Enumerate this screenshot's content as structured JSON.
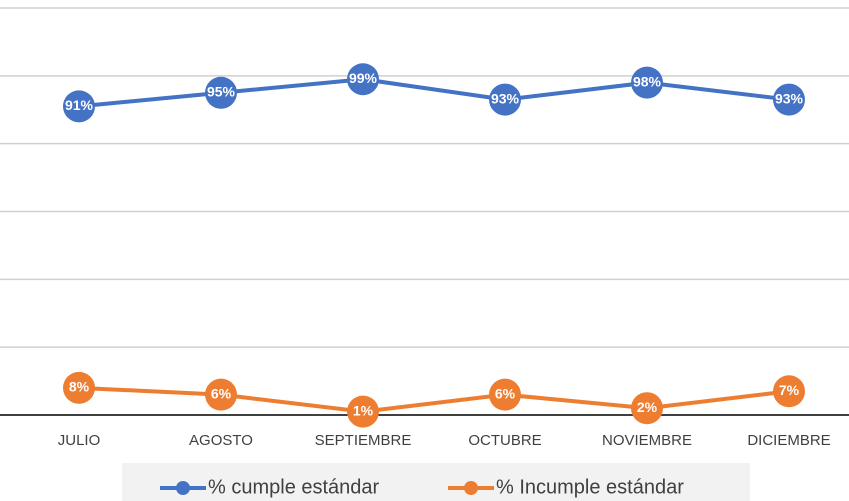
{
  "chart_data": {
    "type": "line",
    "categories": [
      "JULIO",
      "AGOSTO",
      "SEPTIEMBRE",
      "OCTUBRE",
      "NOVIEMBRE",
      "DICIEMBRE"
    ],
    "series": [
      {
        "name": "% cumple estándar",
        "color": "#4472c4",
        "values": [
          91,
          95,
          99,
          93,
          98,
          93
        ],
        "value_labels": [
          "91%",
          "95%",
          "99%",
          "93%",
          "98%",
          "93%"
        ]
      },
      {
        "name": "% Incumple estándar",
        "color": "#ed7d31",
        "values": [
          8,
          6,
          1,
          6,
          2,
          7
        ],
        "value_labels": [
          "8%",
          "6%",
          "1%",
          "6%",
          "2%",
          "7%"
        ]
      }
    ],
    "ylim": [
      0,
      120
    ],
    "yticks": [
      0,
      20,
      40,
      60,
      80,
      100,
      120
    ],
    "grid": true,
    "legend": "bottom"
  }
}
